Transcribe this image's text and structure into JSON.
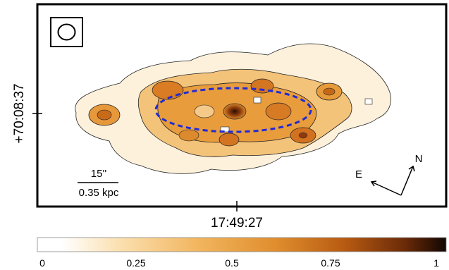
{
  "figure": {
    "beam_symbol": "ellipse-beam-icon",
    "axes": {
      "x_tick_label": "17:49:27",
      "y_tick_label": "+70:08:37"
    },
    "scalebar": {
      "angular_label": "15''",
      "physical_label": "0.35 kpc"
    },
    "compass": {
      "north_label": "N",
      "east_label": "E"
    },
    "colorbar": {
      "tick_labels": [
        "0",
        "0.25",
        "0.5",
        "0.75",
        "1"
      ],
      "range": [
        0,
        1
      ],
      "colors": [
        "#ffffff",
        "#fbe2b6",
        "#f0b255",
        "#d07a1c",
        "#8c3b0a",
        "#1a0a04"
      ]
    },
    "overlay": {
      "ellipse_color": "#1f2bd6",
      "ellipse_style": "dashed"
    }
  }
}
